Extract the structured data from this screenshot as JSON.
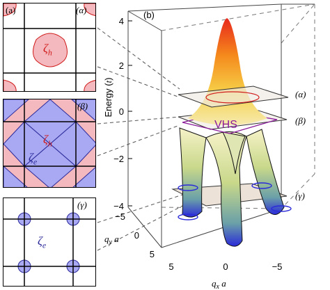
{
  "panel_a": {
    "label": "(a)",
    "level": "(α)",
    "pocket": "ζ",
    "pocket_sub": "h"
  },
  "panel_beta": {
    "level": "(β)",
    "hole": "ζ",
    "hole_sub": "h",
    "electron": "ζ",
    "electron_sub": "e"
  },
  "panel_gamma": {
    "level": "(γ)",
    "pocket": "ζ",
    "pocket_sub": "e"
  },
  "panel_b": {
    "label": "(b)",
    "vhs": "VHS",
    "ylabel_main": "Energy (",
    "ylabel_unit": "t",
    "ylabel_end": ")",
    "yticks": [
      "4",
      "2",
      "0",
      "−2",
      "−4"
    ],
    "qy_ticks": [
      "−5",
      "0",
      "5"
    ],
    "qx_ticks": [
      "5",
      "0",
      "−5"
    ],
    "qy_label": "q",
    "qy_sub": "y",
    "qy_a": " a",
    "qx_label": "q",
    "qx_sub": "x",
    "qx_a": " a",
    "level_alpha": "(α)",
    "level_beta": "(β)",
    "level_gamma": "(γ)"
  },
  "colors": {
    "pink": "#f4b9be",
    "blue": "#a9a8f2",
    "red": "#d01a1a",
    "navy": "#2a2a9a",
    "purple": "#8a1a9a"
  }
}
